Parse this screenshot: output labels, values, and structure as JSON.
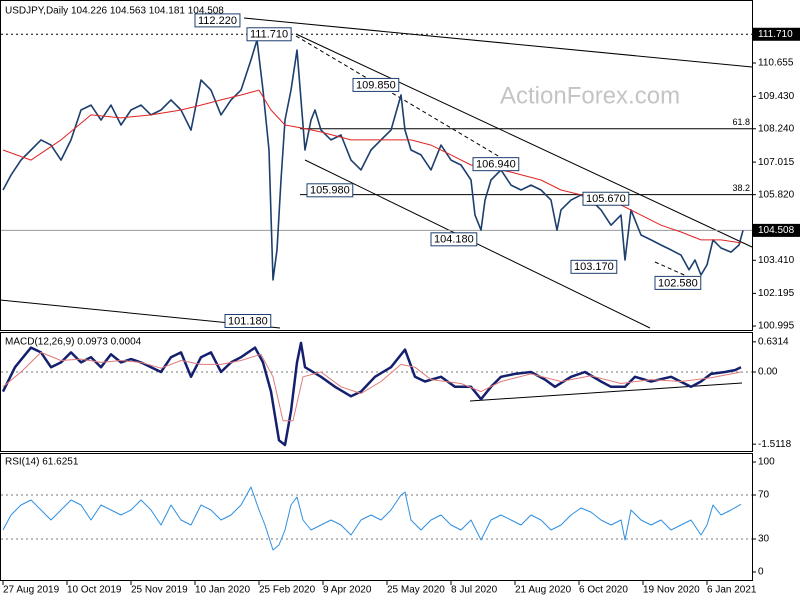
{
  "chart_data": [
    {
      "type": "line",
      "title": "USDJPY,Daily  104.226 104.563 104.181 104.508",
      "watermark": "ActionForex.com",
      "xlim": [
        -1.5,
        374.5
      ],
      "ylim": [
        100.85,
        112.785
      ],
      "yticks": [
        110.655,
        {
          "value": 109.43,
          "label": "109.430"
        },
        {
          "value": 108.24,
          "label": "108.240"
        },
        107.015,
        {
          "value": 105.82,
          "label": "105.820"
        },
        {
          "value": 103.41,
          "label": "103.410"
        },
        102.195,
        100.995
      ],
      "levels": [
        {
          "value": 111.71,
          "label": "111.710",
          "style": "dotted"
        },
        {
          "value": 104.508,
          "label": "104.508",
          "style": "solid"
        }
      ],
      "fibo": [
        {
          "ratio": 61.8,
          "price": 108.24
        },
        {
          "ratio": 38.2,
          "price": 105.82
        }
      ],
      "annotations": [
        {
          "label": "112.220",
          "value": 112.22,
          "x": 96
        },
        {
          "label": "111.710",
          "value": 111.71,
          "x": 122
        },
        {
          "label": "109.850",
          "value": 109.85,
          "x": 175
        },
        {
          "label": "106.940",
          "value": 106.94,
          "x": 235
        },
        {
          "label": "105.980",
          "value": 105.98,
          "x": 152
        },
        {
          "label": "105.670",
          "value": 105.67,
          "x": 290
        },
        {
          "label": "104.180",
          "value": 104.18,
          "x": 214
        },
        {
          "label": "103.170",
          "value": 103.17,
          "x": 284
        },
        {
          "label": "102.580",
          "value": 102.58,
          "x": 326
        },
        {
          "label": "101.180",
          "value": 101.18,
          "x": 111
        }
      ],
      "series": [
        {
          "color": "#1c3f6e",
          "x": [
            0,
            4,
            9,
            14,
            19,
            24,
            29,
            34,
            39,
            44,
            49,
            54,
            59,
            64,
            69,
            74,
            79,
            84,
            89,
            94,
            99,
            104,
            109,
            114,
            119,
            124,
            127,
            130,
            133,
            135,
            137,
            139,
            141,
            144,
            147,
            149,
            151,
            154,
            156,
            159,
            164,
            169,
            174,
            179,
            184,
            189,
            194,
            199,
            201,
            204,
            209,
            214,
            219,
            224,
            229,
            234,
            236,
            239,
            241,
            244,
            249,
            254,
            259,
            264,
            269,
            274,
            277,
            279,
            284,
            289,
            294,
            299,
            304,
            309,
            311,
            314,
            319,
            324,
            329,
            334,
            339,
            343,
            346,
            349,
            352,
            355,
            359,
            364,
            368,
            370
          ],
          "values": [
            105.99,
            106.54,
            107.09,
            107.46,
            107.83,
            107.64,
            107.09,
            107.83,
            108.93,
            109.11,
            108.56,
            109.11,
            108.38,
            108.93,
            109.11,
            108.75,
            108.93,
            109.3,
            108.93,
            108.19,
            110.03,
            109.66,
            108.75,
            109.3,
            109.66,
            110.77,
            111.5,
            109.66,
            107.46,
            102.69,
            103.79,
            106.36,
            108.56,
            109.66,
            111.13,
            109.3,
            107.46,
            108.56,
            108.93,
            108.19,
            107.83,
            108.01,
            107.09,
            106.73,
            107.46,
            107.83,
            108.19,
            109.48,
            108.19,
            107.46,
            107.28,
            106.73,
            107.64,
            107.09,
            106.91,
            106.36,
            105.07,
            104.52,
            105.62,
            106.36,
            106.73,
            106.17,
            105.99,
            106.17,
            105.99,
            105.62,
            104.52,
            105.26,
            105.62,
            105.81,
            105.62,
            105.26,
            104.7,
            105.07,
            103.42,
            105.26,
            104.34,
            104.16,
            103.97,
            103.79,
            103.6,
            103.06,
            103.42,
            102.87,
            103.24,
            104.16,
            103.86,
            103.71,
            103.97,
            104.508
          ]
        },
        {
          "color": "#e02424",
          "x": [
            0,
            14,
            29,
            44,
            59,
            74,
            89,
            99,
            109,
            119,
            128,
            134,
            141,
            149,
            159,
            174,
            189,
            204,
            214,
            224,
            234,
            244,
            254,
            269,
            279,
            289,
            299,
            309,
            319,
            329,
            339,
            349,
            359,
            369
          ],
          "values": [
            107.46,
            107.09,
            107.83,
            108.75,
            108.64,
            108.75,
            108.93,
            109.11,
            109.3,
            109.48,
            109.66,
            108.93,
            108.38,
            108.27,
            108.12,
            107.83,
            107.83,
            107.83,
            107.64,
            107.28,
            106.91,
            106.8,
            106.65,
            106.36,
            105.99,
            105.81,
            105.62,
            105.44,
            105.07,
            104.7,
            104.45,
            104.16,
            104.16,
            104.05
          ]
        }
      ]
    },
    {
      "type": "line",
      "title": "MACD(12,26,9) 0.0973 0.0004",
      "xlim": [
        -1.5,
        374.5
      ],
      "ylim": [
        -1.634,
        0.754
      ],
      "yticks": [
        0.6314,
        {
          "value": 0,
          "label": "0.00"
        },
        -1.5118
      ],
      "dashed_levels": [
        0
      ],
      "series": [
        {
          "color": "#14206e",
          "x": [
            0,
            6,
            14,
            19,
            24,
            29,
            34,
            39,
            44,
            49,
            54,
            59,
            64,
            69,
            74,
            79,
            84,
            89,
            94,
            99,
            104,
            109,
            114,
            119,
            126,
            130,
            134,
            138,
            141,
            144,
            147,
            149,
            151,
            159,
            166,
            174,
            179,
            186,
            194,
            201,
            206,
            211,
            219,
            226,
            234,
            239,
            244,
            249,
            256,
            264,
            271,
            276,
            284,
            291,
            299,
            304,
            311,
            316,
            324,
            334,
            344,
            349,
            354,
            361,
            366,
            369
          ],
          "values": [
            -0.41,
            0.1,
            0.51,
            0.41,
            0.1,
            0.2,
            0.41,
            0.2,
            0.31,
            0.1,
            0.37,
            0.2,
            0.27,
            0.2,
            0.1,
            0,
            0.31,
            0.41,
            -0.1,
            0.31,
            0.41,
            0,
            0.2,
            0.31,
            0.51,
            0.2,
            -0.41,
            -1.43,
            -1.53,
            -0.82,
            0.2,
            0.61,
            0.1,
            -0.1,
            -0.31,
            -0.51,
            -0.41,
            -0.1,
            0.1,
            0.47,
            -0.1,
            -0.2,
            -0.1,
            -0.31,
            -0.31,
            -0.57,
            -0.31,
            -0.1,
            -0.04,
            0,
            -0.16,
            -0.31,
            -0.1,
            0,
            -0.2,
            -0.31,
            -0.31,
            -0.1,
            -0.2,
            -0.1,
            -0.31,
            -0.2,
            -0.04,
            0,
            0.04,
            0.1
          ]
        },
        {
          "color": "#e07a7a",
          "x": [
            0,
            9,
            19,
            29,
            39,
            49,
            59,
            69,
            79,
            89,
            99,
            109,
            119,
            129,
            135,
            140,
            145,
            150,
            159,
            169,
            179,
            189,
            199,
            206,
            214,
            229,
            239,
            249,
            264,
            279,
            294,
            309,
            324,
            339,
            354,
            369
          ],
          "values": [
            -0.31,
            0,
            0.41,
            0.24,
            0.27,
            0.2,
            0.24,
            0.2,
            0.08,
            0.24,
            0.16,
            0.16,
            0.24,
            0.37,
            -0.1,
            -1.02,
            -1.02,
            -0.1,
            0,
            -0.31,
            -0.45,
            -0.2,
            0.16,
            0.1,
            -0.16,
            -0.24,
            -0.41,
            -0.2,
            -0.04,
            -0.2,
            -0.08,
            -0.24,
            -0.16,
            -0.2,
            -0.12,
            0
          ]
        }
      ]
    },
    {
      "type": "line",
      "title": "RSI(14) 61.6251",
      "xlim": [
        -1.5,
        374.5
      ],
      "ylim": [
        -7.3,
        105.5
      ],
      "yticks": [
        100,
        70,
        30,
        0
      ],
      "dashed_levels": [
        70,
        30
      ],
      "xticks": [
        {
          "value": 0,
          "label": "27 Aug 2019"
        },
        {
          "value": 32,
          "label": "10 Oct 2019"
        },
        {
          "value": 64,
          "label": "25 Nov 2019"
        },
        {
          "value": 96,
          "label": "10 Jan 2020"
        },
        {
          "value": 128,
          "label": "25 Feb 2020"
        },
        {
          "value": 160,
          "label": "9 Apr 2020"
        },
        {
          "value": 192,
          "label": "25 May 2020"
        },
        {
          "value": 224,
          "label": "8 Jul 2020"
        },
        {
          "value": 256,
          "label": "21 Aug 2020"
        },
        {
          "value": 288,
          "label": "6 Oct 2020"
        },
        {
          "value": 320,
          "label": "19 Nov 2020"
        },
        {
          "value": 352,
          "label": "6 Jan 2021"
        }
      ],
      "series": [
        {
          "color": "#2f8fdf",
          "x": [
            0,
            4,
            9,
            14,
            19,
            24,
            29,
            34,
            39,
            44,
            49,
            54,
            59,
            64,
            69,
            74,
            79,
            84,
            89,
            94,
            99,
            104,
            109,
            114,
            119,
            124,
            128,
            131,
            135,
            138,
            141,
            144,
            147,
            150,
            154,
            159,
            164,
            169,
            174,
            179,
            184,
            189,
            194,
            199,
            201,
            204,
            209,
            214,
            219,
            224,
            229,
            234,
            239,
            244,
            249,
            254,
            259,
            264,
            269,
            274,
            279,
            284,
            289,
            294,
            299,
            304,
            309,
            311,
            314,
            319,
            324,
            329,
            334,
            339,
            344,
            349,
            352,
            355,
            359,
            364,
            369
          ],
          "values": [
            38.2,
            51.8,
            60.9,
            65.5,
            56.4,
            47.3,
            56.4,
            65.5,
            60.9,
            47.3,
            60.9,
            56.4,
            51.8,
            56.4,
            65.5,
            56.4,
            42.7,
            60.9,
            47.3,
            42.7,
            60.9,
            56.4,
            47.3,
            51.8,
            60.9,
            77.3,
            56.4,
            42.7,
            20,
            24.5,
            38.2,
            60.9,
            68.2,
            47.3,
            38.2,
            42.7,
            47.3,
            42.7,
            33.6,
            47.3,
            51.8,
            47.3,
            56.4,
            70,
            72.7,
            47.3,
            38.2,
            47.3,
            51.8,
            42.7,
            38.2,
            47.3,
            29.1,
            47.3,
            51.8,
            47.3,
            42.7,
            51.8,
            47.3,
            38.2,
            42.7,
            51.8,
            58.2,
            54.5,
            47.3,
            42.7,
            47.3,
            29.1,
            56.4,
            47.3,
            42.7,
            47.3,
            38.2,
            42.7,
            47.3,
            33.6,
            42.7,
            60.9,
            51.8,
            56.4,
            61.6
          ]
        }
      ]
    }
  ]
}
